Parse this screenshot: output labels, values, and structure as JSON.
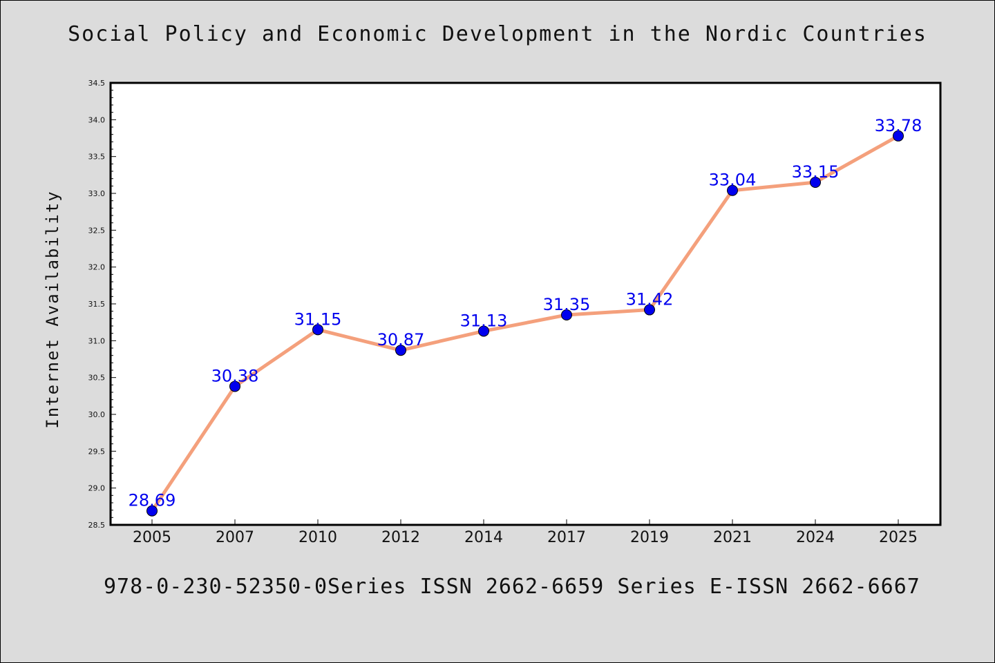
{
  "header": {
    "title": "Social Policy and Economic Development in the Nordic Countries"
  },
  "footer": {
    "text": "978-0-230-52350-0Series ISSN 2662-6659 Series E-ISSN 2662-6667"
  },
  "chart_data": {
    "type": "line",
    "title": "Social Policy and Economic Development in the Nordic Countries",
    "xlabel": "",
    "ylabel": "Internet Availability",
    "categories": [
      "2005",
      "2007",
      "2010",
      "2012",
      "2014",
      "2017",
      "2019",
      "2021",
      "2024",
      "2025"
    ],
    "values": [
      28.69,
      30.38,
      31.15,
      30.87,
      31.13,
      31.35,
      31.42,
      33.04,
      33.15,
      33.78
    ],
    "value_labels": [
      "28.69",
      "30.38",
      "31.15",
      "30.87",
      "31.13",
      "31.35",
      "31.42",
      "33.04",
      "33.15",
      "33.78"
    ],
    "ylim": [
      28.5,
      34.5
    ],
    "yticks": [
      "28.5",
      "29.0",
      "29.5",
      "30.0",
      "30.5",
      "31.0",
      "31.5",
      "32.0",
      "32.5",
      "33.0",
      "33.5",
      "34.0",
      "34.5"
    ],
    "grid": false,
    "line_color": "#f4a07c",
    "marker_color": "#0000ee",
    "label_color": "#0000ee"
  }
}
